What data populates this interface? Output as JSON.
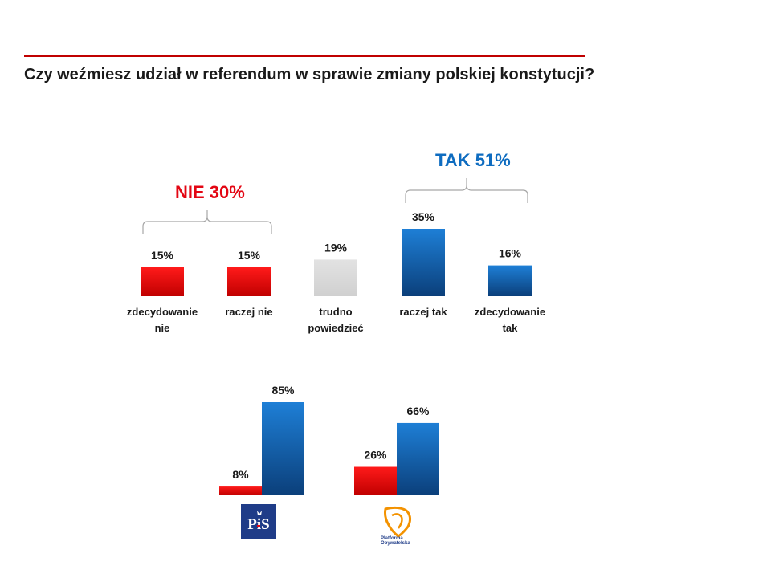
{
  "title": "Czy weźmiesz udział w referendum w sprawie zmiany polskiej konstytucji?",
  "colors": {
    "red": "#e30613",
    "blue": "#0e6cc0",
    "gray": "#d9d9d9",
    "rule": "#c00000"
  },
  "groups": {
    "nie": "NIE 30%",
    "tak": "TAK 51%"
  },
  "chart_data": [
    {
      "type": "bar",
      "title": "",
      "categories": [
        [
          "zdecydowanie",
          "nie"
        ],
        [
          "raczej nie"
        ],
        [
          "trudno",
          "powiedzieć"
        ],
        [
          "raczej tak"
        ],
        [
          "zdecydowanie",
          "tak"
        ]
      ],
      "values": [
        15,
        15,
        19,
        35,
        16
      ],
      "labels": [
        "15%",
        "15%",
        "19%",
        "35%",
        "16%"
      ],
      "bar_colors": [
        "red",
        "red",
        "gray",
        "blue",
        "blue"
      ],
      "ylim": [
        0,
        35
      ],
      "grid": false
    },
    {
      "type": "bar",
      "title": "",
      "categories": [
        "PiS",
        "Platforma Obywatelska"
      ],
      "series": [
        {
          "values": [
            8,
            26
          ],
          "labels": [
            "8%",
            "26%"
          ],
          "color": "red"
        },
        {
          "values": [
            85,
            66
          ],
          "labels": [
            "85%",
            "66%"
          ],
          "color": "blue"
        }
      ],
      "ylim": [
        0,
        85
      ],
      "grid": false
    }
  ],
  "logos": {
    "pis": "PiS",
    "po": [
      "Platforma",
      "Obywatelska"
    ]
  }
}
